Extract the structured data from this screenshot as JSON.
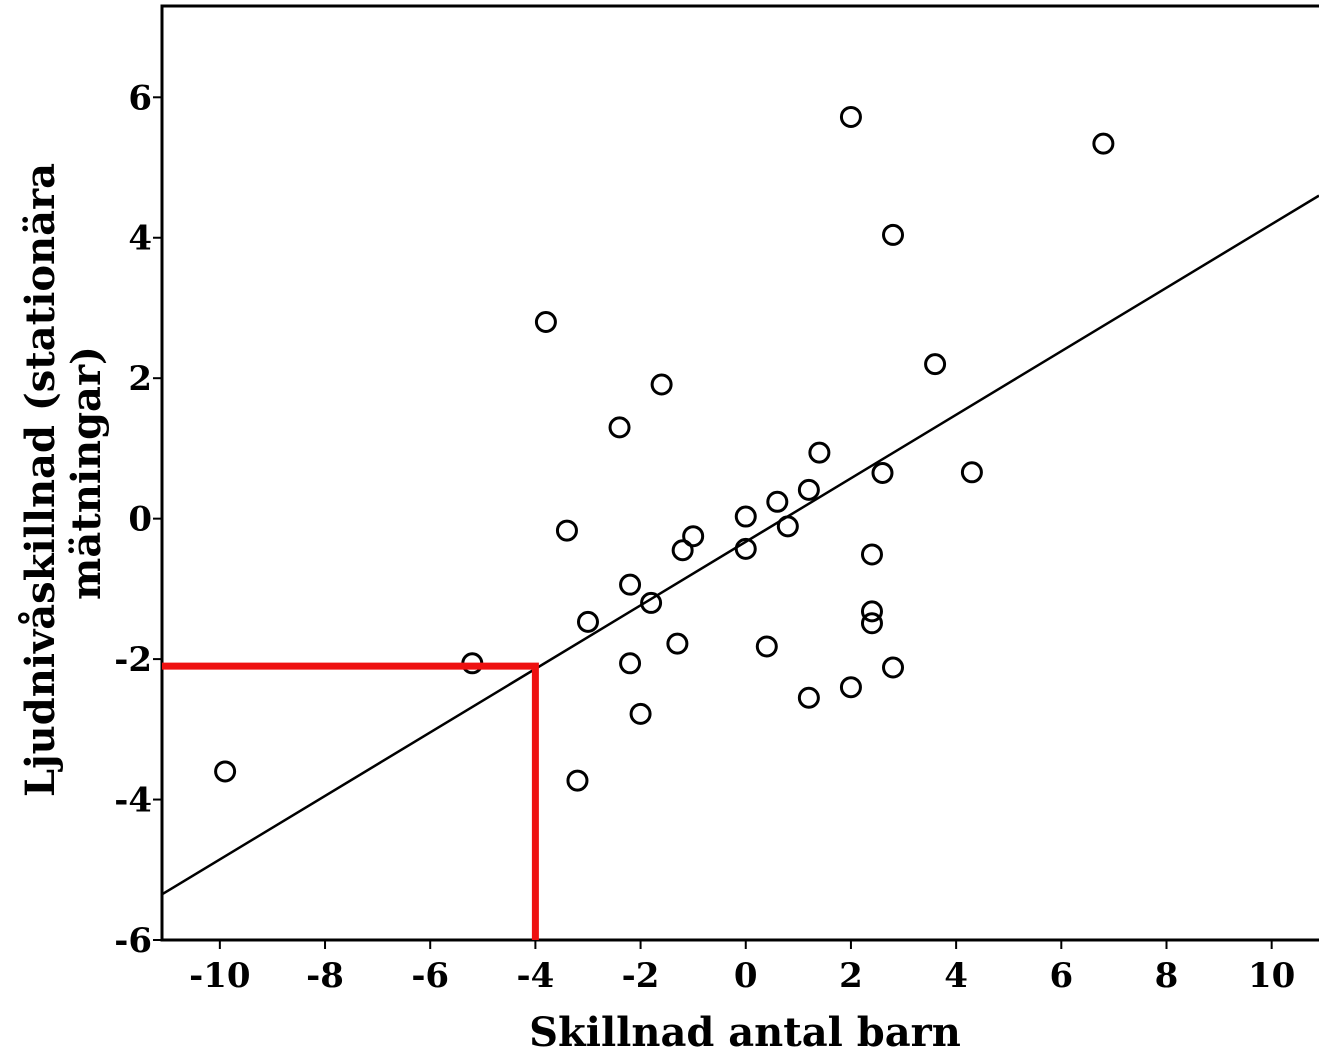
{
  "chart_data": {
    "type": "scatter",
    "title": "",
    "xlabel": "Skillnad antal barn",
    "ylabel_lines": [
      "Ljudnivåskillnad (stationära",
      "mätningar)"
    ],
    "xlim": [
      -11.1,
      10.9
    ],
    "ylim": [
      -6.0,
      7.3
    ],
    "x_ticks": [
      -10,
      -8,
      -6,
      -4,
      -2,
      0,
      2,
      4,
      6,
      8,
      10
    ],
    "x_tick_labels": [
      "-10",
      "-8",
      "-6",
      "-4",
      "-2",
      "0",
      "2",
      "4",
      "6",
      "8",
      "10"
    ],
    "y_ticks": [
      -6,
      -4,
      -2,
      0,
      2,
      4,
      6
    ],
    "y_tick_labels": [
      "-6",
      "-4",
      "-2",
      "0",
      "2",
      "4",
      "6"
    ],
    "grid": false,
    "points": [
      {
        "x": -9.9,
        "y": -3.6
      },
      {
        "x": -5.2,
        "y": -2.06
      },
      {
        "x": -3.8,
        "y": 2.8
      },
      {
        "x": -3.4,
        "y": -0.17
      },
      {
        "x": -3.2,
        "y": -3.73
      },
      {
        "x": -3.0,
        "y": -1.47
      },
      {
        "x": -2.4,
        "y": 1.3
      },
      {
        "x": -2.2,
        "y": -0.94
      },
      {
        "x": -2.2,
        "y": -2.06
      },
      {
        "x": -2.0,
        "y": -2.78
      },
      {
        "x": -1.8,
        "y": -1.2
      },
      {
        "x": -1.6,
        "y": 1.91
      },
      {
        "x": -1.3,
        "y": -1.78
      },
      {
        "x": -1.2,
        "y": -0.45
      },
      {
        "x": -1.0,
        "y": -0.25
      },
      {
        "x": 0.0,
        "y": 0.03
      },
      {
        "x": 0.0,
        "y": -0.43
      },
      {
        "x": 0.4,
        "y": -1.82
      },
      {
        "x": 0.6,
        "y": 0.24
      },
      {
        "x": 0.8,
        "y": -0.11
      },
      {
        "x": 1.2,
        "y": 0.41
      },
      {
        "x": 1.2,
        "y": -2.55
      },
      {
        "x": 1.4,
        "y": 0.94
      },
      {
        "x": 2.0,
        "y": 5.72
      },
      {
        "x": 2.0,
        "y": -2.4
      },
      {
        "x": 2.4,
        "y": -0.51
      },
      {
        "x": 2.4,
        "y": -1.32
      },
      {
        "x": 2.4,
        "y": -1.49
      },
      {
        "x": 2.6,
        "y": 0.65
      },
      {
        "x": 2.8,
        "y": 4.04
      },
      {
        "x": 2.8,
        "y": -2.12
      },
      {
        "x": 3.6,
        "y": 2.2
      },
      {
        "x": 4.3,
        "y": 0.66
      },
      {
        "x": 6.8,
        "y": 5.34
      }
    ],
    "fit_line": {
      "x": [
        -11.1,
        10.9
      ],
      "y": [
        -5.35,
        4.6
      ]
    },
    "highlight": {
      "x": -4.0,
      "y": -2.1,
      "color": "#ee1111"
    },
    "colors": {
      "marker": "#000000",
      "line": "#000000",
      "highlight": "#ee1111"
    }
  }
}
